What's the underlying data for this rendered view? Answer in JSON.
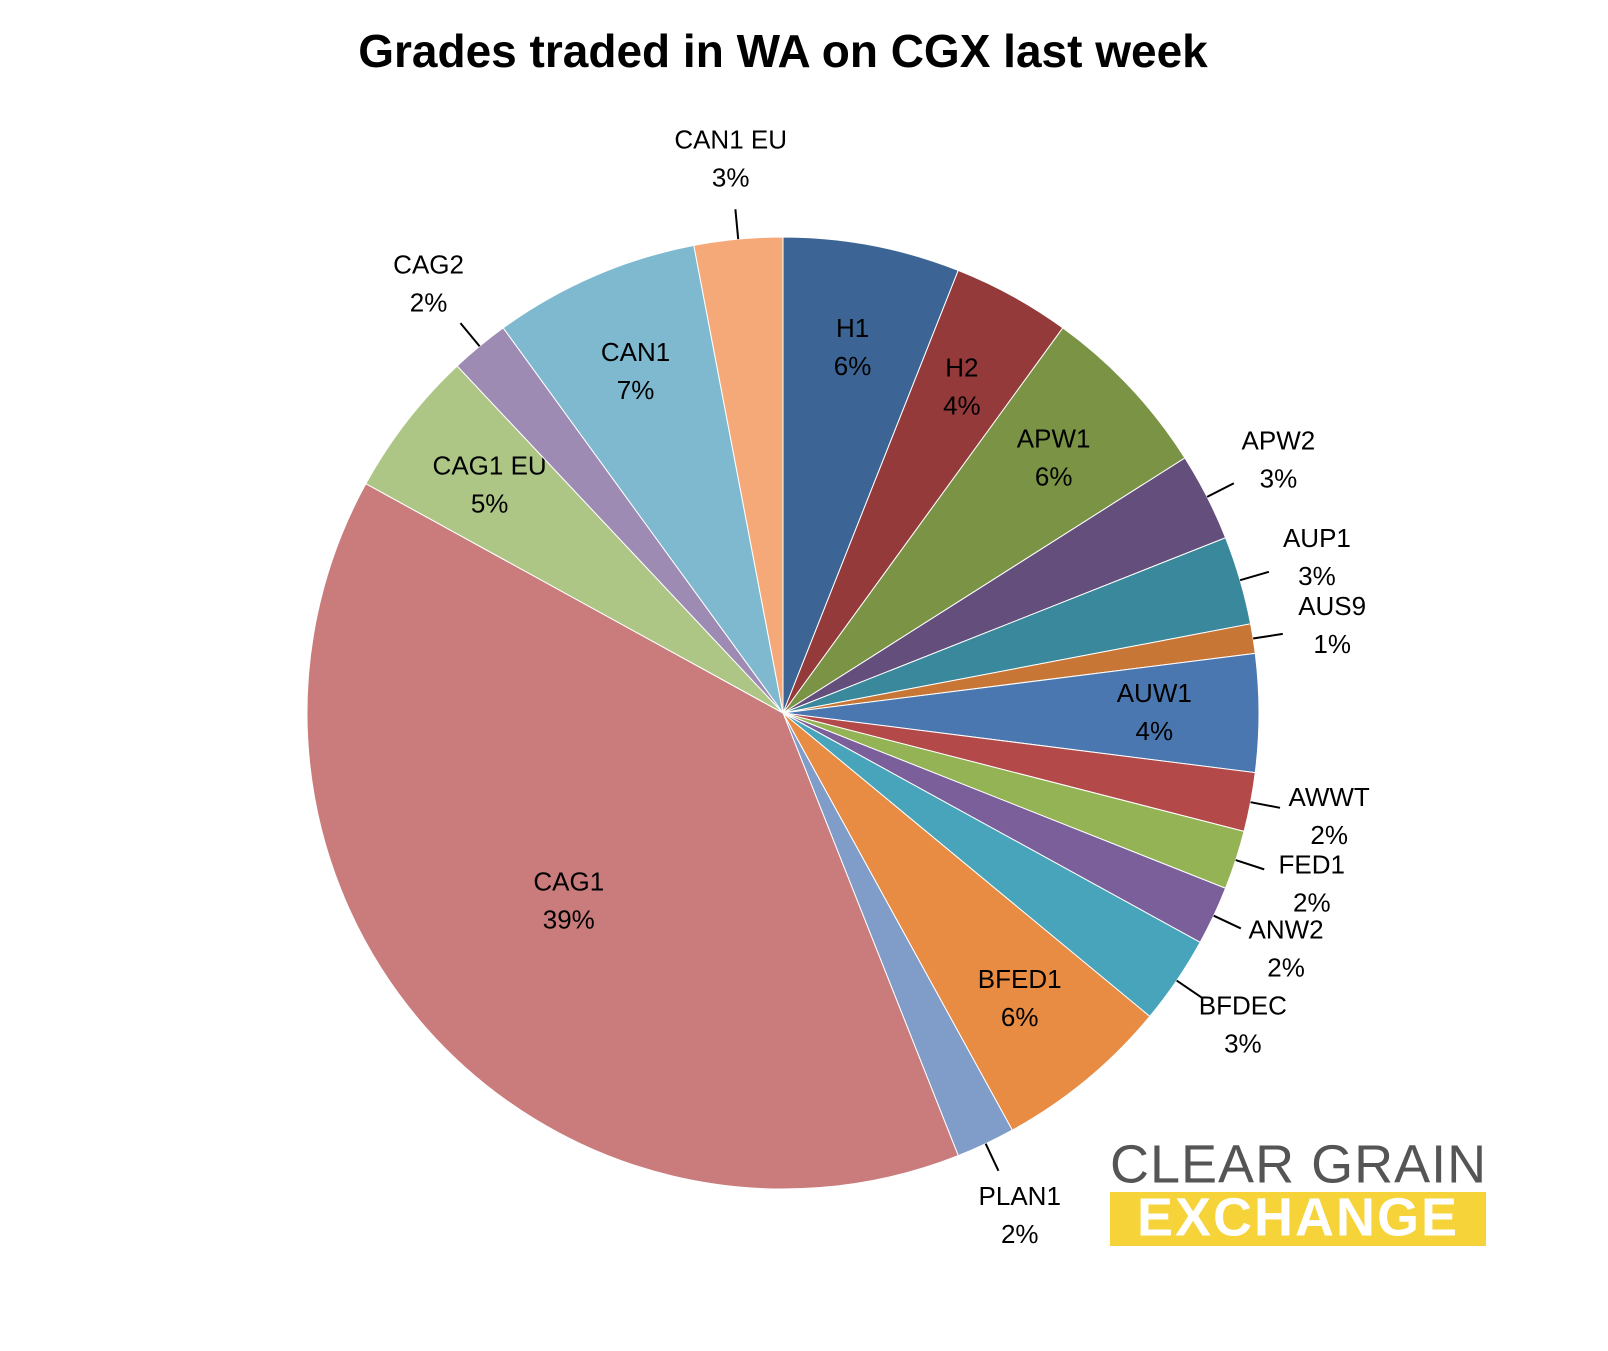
{
  "chart_data": {
    "type": "pie",
    "title": "Grades traded in WA on CGX last week",
    "categories": [
      "H1",
      "H2",
      "APW1",
      "APW2",
      "AUP1",
      "AUS9",
      "AUW1",
      "AWWT",
      "FED1",
      "ANW2",
      "BFDEC",
      "BFED1",
      "PLAN1",
      "CAG1",
      "CAG1 EU",
      "CAG2",
      "CAN1",
      "CAN1 EU"
    ],
    "values": [
      6,
      4,
      6,
      3,
      3,
      1,
      4,
      2,
      2,
      2,
      3,
      6,
      2,
      39,
      5,
      2,
      7,
      3
    ],
    "value_labels": [
      "6%",
      "4%",
      "6%",
      "3%",
      "3%",
      "1%",
      "4%",
      "2%",
      "2%",
      "2%",
      "3%",
      "6%",
      "2%",
      "39%",
      "5%",
      "2%",
      "7%",
      "3%"
    ],
    "colors": [
      "#3c6595",
      "#953a3a",
      "#7a9345",
      "#634e7c",
      "#39889b",
      "#c87636",
      "#4a77b0",
      "#b34948",
      "#93b355",
      "#7a5f9a",
      "#47a4ba",
      "#e88c44",
      "#809dc9",
      "#c97c7b",
      "#adc686",
      "#9e8bb4",
      "#7fb9cf",
      "#f5a878"
    ]
  },
  "logo": {
    "line1": "CLEAR GRAIN",
    "line2": "EXCHANGE"
  }
}
